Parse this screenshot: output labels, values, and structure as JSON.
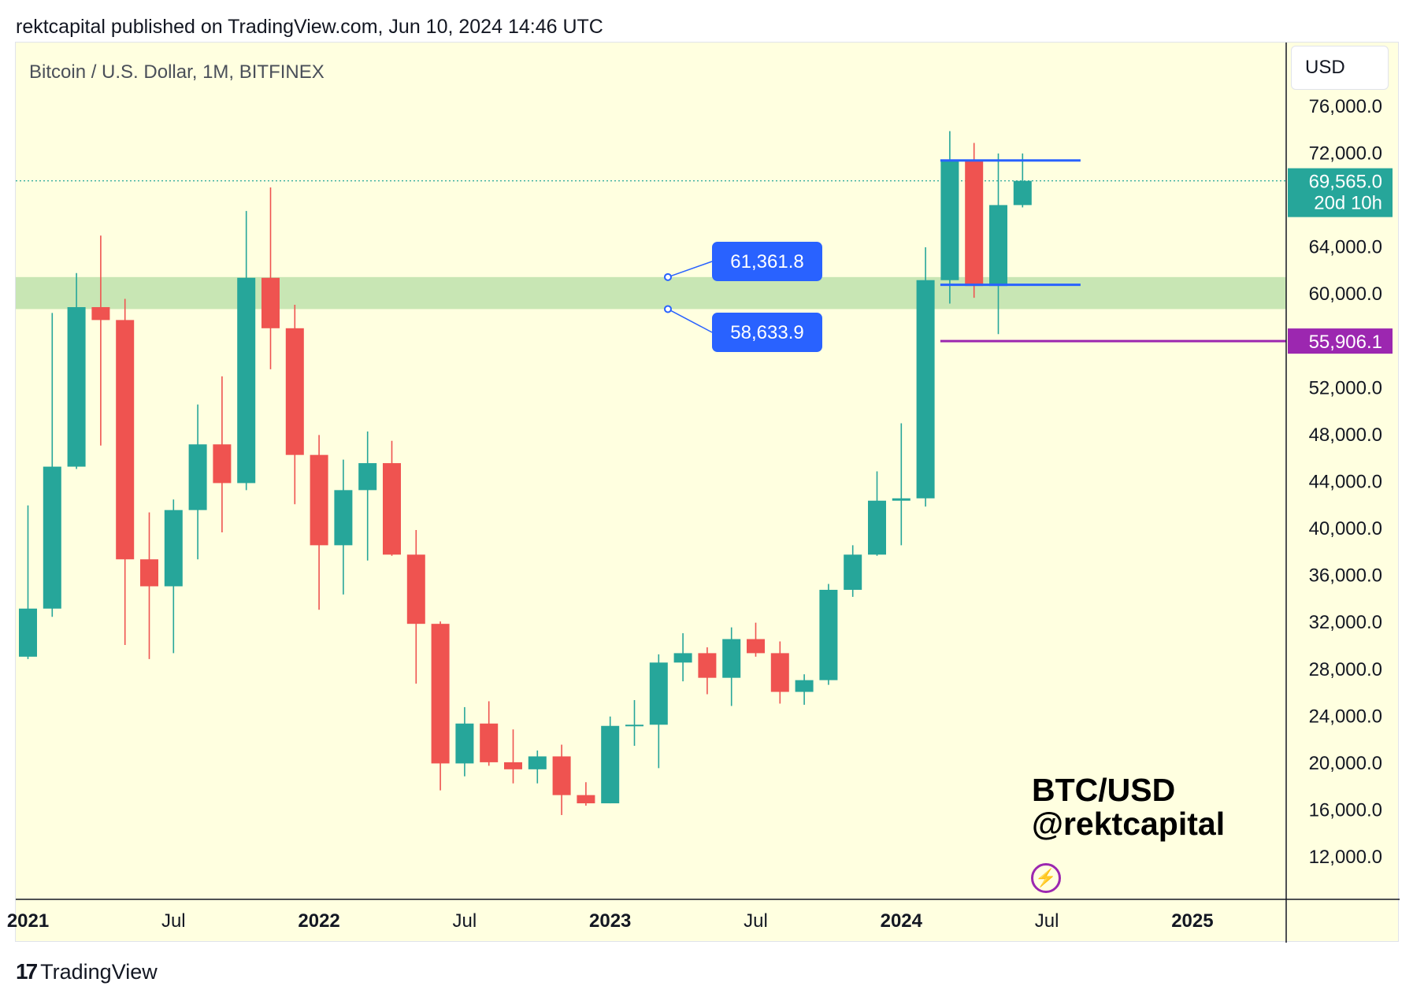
{
  "header": {
    "published_text": "rektcapital published on TradingView.com, Jun 10, 2024 14:46 UTC"
  },
  "chart_title": "Bitcoin / U.S. Dollar, 1M, BITFINEX",
  "currency_label": "USD",
  "watermark": {
    "line1": "BTC/USD",
    "line2": "@rektcapital"
  },
  "footer": {
    "brand": "TradingView",
    "mark": "17"
  },
  "colors": {
    "up": "#26a69a",
    "down": "#ef5350",
    "background": "#ffffe0",
    "support_zone": "#c8e6b4",
    "range_lines": "#2962ff",
    "purple_line": "#9c27b0",
    "callout_bg": "#2962ff"
  },
  "icons": {
    "bolt": "lightning-bolt-icon"
  },
  "chart_data": {
    "type": "candlestick",
    "title": "Bitcoin / U.S. Dollar, 1M, BITFINEX",
    "ylim": [
      8850,
      78000
    ],
    "x_start": "2021-01",
    "y_tick_labels": [
      "76,000.0",
      "72,000.0",
      "64,000.0",
      "60,000.0",
      "52,000.0",
      "48,000.0",
      "44,000.0",
      "40,000.0",
      "36,000.0",
      "32,000.0",
      "28,000.0",
      "24,000.0",
      "20,000.0",
      "16,000.0",
      "12,000.0"
    ],
    "y_tick_values": [
      76000,
      72000,
      64000,
      60000,
      52000,
      48000,
      44000,
      40000,
      36000,
      32000,
      28000,
      24000,
      20000,
      16000,
      12000
    ],
    "x_tick_labels": [
      {
        "label": "2021",
        "month": "2021-01",
        "bold": true
      },
      {
        "label": "Jul",
        "month": "2021-07",
        "bold": false
      },
      {
        "label": "2022",
        "month": "2022-01",
        "bold": true
      },
      {
        "label": "Jul",
        "month": "2022-07",
        "bold": false
      },
      {
        "label": "2023",
        "month": "2023-01",
        "bold": true
      },
      {
        "label": "Jul",
        "month": "2023-07",
        "bold": false
      },
      {
        "label": "2024",
        "month": "2024-01",
        "bold": true
      },
      {
        "label": "Jul",
        "month": "2024-07",
        "bold": false
      },
      {
        "label": "2025",
        "month": "2025-01",
        "bold": true
      }
    ],
    "candles": [
      {
        "month": "2021-01",
        "o": 29000,
        "h": 41900,
        "l": 28800,
        "c": 33100
      },
      {
        "month": "2021-02",
        "o": 33100,
        "h": 58300,
        "l": 32400,
        "c": 45200
      },
      {
        "month": "2021-03",
        "o": 45200,
        "h": 61700,
        "l": 45000,
        "c": 58800
      },
      {
        "month": "2021-04",
        "o": 58800,
        "h": 64900,
        "l": 47000,
        "c": 57700
      },
      {
        "month": "2021-05",
        "o": 57700,
        "h": 59500,
        "l": 30000,
        "c": 37300
      },
      {
        "month": "2021-06",
        "o": 37300,
        "h": 41300,
        "l": 28800,
        "c": 35000
      },
      {
        "month": "2021-07",
        "o": 35000,
        "h": 42400,
        "l": 29300,
        "c": 41500
      },
      {
        "month": "2021-08",
        "o": 41500,
        "h": 50500,
        "l": 37300,
        "c": 47100
      },
      {
        "month": "2021-09",
        "o": 47100,
        "h": 52900,
        "l": 39600,
        "c": 43800
      },
      {
        "month": "2021-10",
        "o": 43800,
        "h": 67000,
        "l": 43200,
        "c": 61300
      },
      {
        "month": "2021-11",
        "o": 61300,
        "h": 69000,
        "l": 53500,
        "c": 57000
      },
      {
        "month": "2021-12",
        "o": 57000,
        "h": 59000,
        "l": 42000,
        "c": 46200
      },
      {
        "month": "2022-01",
        "o": 46200,
        "h": 47900,
        "l": 33000,
        "c": 38500
      },
      {
        "month": "2022-02",
        "o": 38500,
        "h": 45800,
        "l": 34300,
        "c": 43200
      },
      {
        "month": "2022-03",
        "o": 43200,
        "h": 48200,
        "l": 37200,
        "c": 45500
      },
      {
        "month": "2022-04",
        "o": 45500,
        "h": 47400,
        "l": 37600,
        "c": 37700
      },
      {
        "month": "2022-05",
        "o": 37700,
        "h": 39800,
        "l": 26700,
        "c": 31800
      },
      {
        "month": "2022-06",
        "o": 31800,
        "h": 32000,
        "l": 17600,
        "c": 19900
      },
      {
        "month": "2022-07",
        "o": 19900,
        "h": 24700,
        "l": 18800,
        "c": 23300
      },
      {
        "month": "2022-08",
        "o": 23300,
        "h": 25200,
        "l": 19700,
        "c": 20000
      },
      {
        "month": "2022-09",
        "o": 20000,
        "h": 22800,
        "l": 18200,
        "c": 19400
      },
      {
        "month": "2022-10",
        "o": 19400,
        "h": 21000,
        "l": 18200,
        "c": 20500
      },
      {
        "month": "2022-11",
        "o": 20500,
        "h": 21500,
        "l": 15500,
        "c": 17200
      },
      {
        "month": "2022-12",
        "o": 17200,
        "h": 18300,
        "l": 16300,
        "c": 16500
      },
      {
        "month": "2023-01",
        "o": 16500,
        "h": 23900,
        "l": 16500,
        "c": 23100
      },
      {
        "month": "2023-02",
        "o": 23100,
        "h": 25300,
        "l": 21400,
        "c": 23200
      },
      {
        "month": "2023-03",
        "o": 23200,
        "h": 29200,
        "l": 19500,
        "c": 28500
      },
      {
        "month": "2023-04",
        "o": 28500,
        "h": 31000,
        "l": 26900,
        "c": 29300
      },
      {
        "month": "2023-05",
        "o": 29300,
        "h": 29800,
        "l": 25800,
        "c": 27200
      },
      {
        "month": "2023-06",
        "o": 27200,
        "h": 31500,
        "l": 24800,
        "c": 30500
      },
      {
        "month": "2023-07",
        "o": 30500,
        "h": 31900,
        "l": 29000,
        "c": 29300
      },
      {
        "month": "2023-08",
        "o": 29300,
        "h": 30300,
        "l": 25000,
        "c": 26000
      },
      {
        "month": "2023-09",
        "o": 26000,
        "h": 27500,
        "l": 24900,
        "c": 27000
      },
      {
        "month": "2023-10",
        "o": 27000,
        "h": 35200,
        "l": 26600,
        "c": 34700
      },
      {
        "month": "2023-11",
        "o": 34700,
        "h": 38500,
        "l": 34100,
        "c": 37700
      },
      {
        "month": "2023-12",
        "o": 37700,
        "h": 44800,
        "l": 37600,
        "c": 42300
      },
      {
        "month": "2024-01",
        "o": 42300,
        "h": 48900,
        "l": 38500,
        "c": 42500
      },
      {
        "month": "2024-02",
        "o": 42500,
        "h": 63900,
        "l": 41800,
        "c": 61100
      },
      {
        "month": "2024-03",
        "o": 61100,
        "h": 73800,
        "l": 59100,
        "c": 71300
      },
      {
        "month": "2024-04",
        "o": 71300,
        "h": 72800,
        "l": 59600,
        "c": 60600
      },
      {
        "month": "2024-05",
        "o": 60600,
        "h": 71900,
        "l": 56500,
        "c": 67500
      },
      {
        "month": "2024-06",
        "o": 67500,
        "h": 71900,
        "l": 67300,
        "c": 69565
      }
    ],
    "support_zone": {
      "low": 58633.9,
      "high": 61361.8,
      "low_label": "58,633.9",
      "high_label": "61,361.8"
    },
    "range_lines": [
      {
        "price": 71300,
        "from": "2024-03",
        "to": "2024-08"
      },
      {
        "price": 60700,
        "from": "2024-03",
        "to": "2024-08"
      }
    ],
    "purple_line": {
      "price": 55906.1,
      "label": "55,906.1",
      "from": "2024-03"
    },
    "current_price": {
      "value": 69565,
      "label": "69,565.0",
      "countdown": "20d 10h"
    }
  }
}
